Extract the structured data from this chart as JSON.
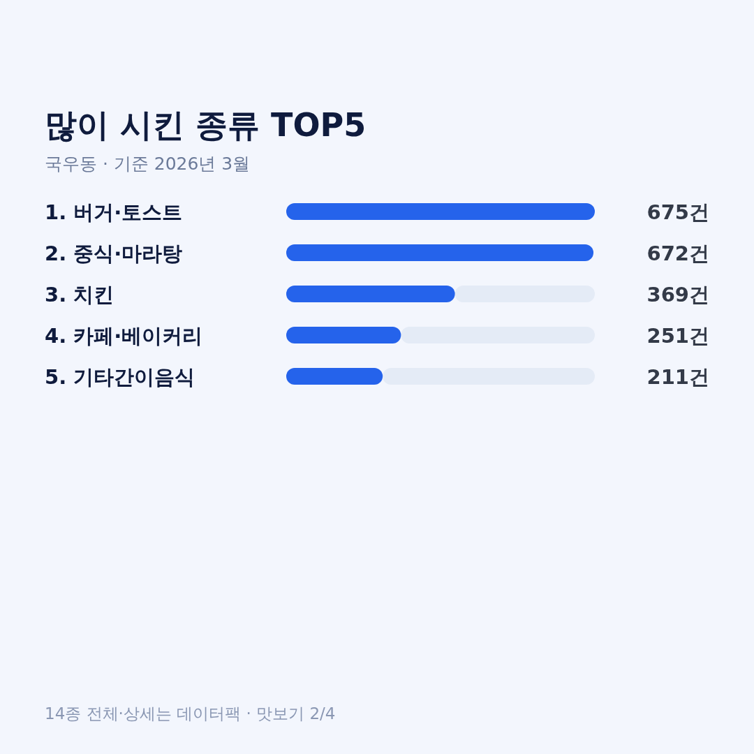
{
  "chart_data": {
    "type": "bar",
    "orientation": "horizontal",
    "title": "많이 시킨 종류 TOP5",
    "subtitle": "국우동 · 기준 2026년 3월",
    "categories": [
      "1. 버거·토스트",
      "2. 중식·마라탕",
      "3. 치킨",
      "4. 카페·베이커리",
      "5. 기타간이음식"
    ],
    "values": [
      675,
      672,
      369,
      251,
      211
    ],
    "value_labels": [
      "675건",
      "672건",
      "369건",
      "251건",
      "211건"
    ],
    "color": "#2563eb",
    "annotations": [
      "14종 전체·상세는 데이터팩 · 맛보기 2/4"
    ]
  }
}
